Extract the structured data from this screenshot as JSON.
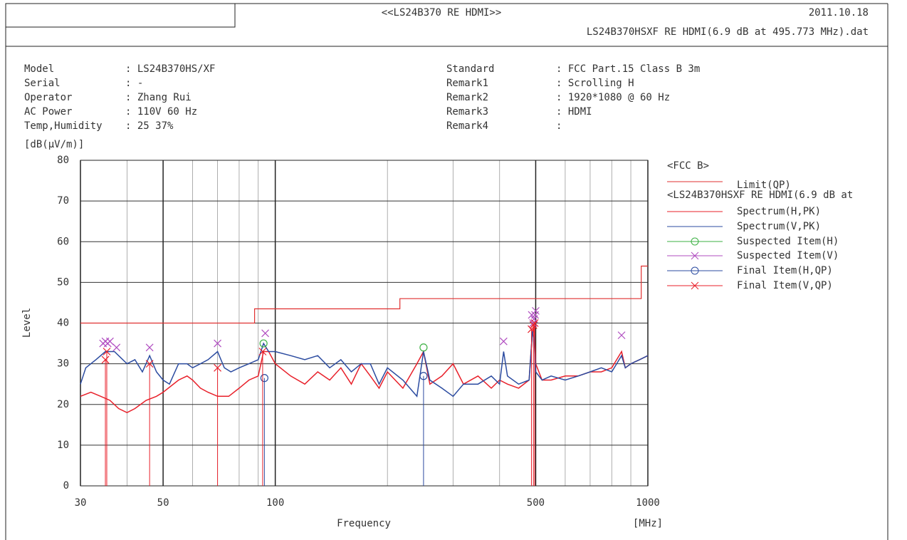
{
  "header": {
    "title": "<<LS24B370 RE HDMI>>",
    "date": "2011.10.18",
    "file": "LS24B370HSXF RE HDMI(6.9 dB at 495.773 MHz).dat"
  },
  "info_left": [
    {
      "label": "Model",
      "value": ": LS24B370HS/XF"
    },
    {
      "label": "Serial",
      "value": ": -"
    },
    {
      "label": "Operator",
      "value": ": Zhang Rui"
    },
    {
      "label": "AC Power",
      "value": ": 110V 60 Hz"
    },
    {
      "label": "Temp,Humidity",
      "value": ": 25 37%"
    }
  ],
  "info_right": [
    {
      "label": "Standard",
      "value": ": FCC Part.15 Class B 3m"
    },
    {
      "label": "Remark1",
      "value": ": Scrolling H"
    },
    {
      "label": "Remark2",
      "value": ": 1920*1080 @ 60 Hz"
    },
    {
      "label": "Remark3",
      "value": ": HDMI"
    },
    {
      "label": "Remark4",
      "value": ":"
    }
  ],
  "chart_data": {
    "type": "line",
    "y_unit": "[dB(μV/m)]",
    "y_label": "Level",
    "x_label": "Frequency",
    "x_unit": "[MHz]",
    "x_log": true,
    "grid": true,
    "xlim": [
      30,
      1000
    ],
    "xticks": [
      30,
      50,
      100,
      500,
      1000
    ],
    "xminor": [
      40,
      60,
      70,
      80,
      90,
      200,
      300,
      400,
      600,
      700,
      800,
      900
    ],
    "ylim": [
      0,
      80
    ],
    "yticks": [
      0,
      10,
      20,
      30,
      40,
      50,
      60,
      70,
      80
    ],
    "legend_group1": "<FCC B>",
    "legend_group2": "<LS24B370HSXF RE HDMI(6.9 dB at",
    "limit": {
      "name": "Limit(QP)",
      "color": "#e03030",
      "x": [
        30,
        88,
        88,
        216,
        216,
        960,
        960,
        1000
      ],
      "values": [
        40,
        40,
        43.5,
        43.5,
        46,
        46,
        54,
        54
      ]
    },
    "series": [
      {
        "name": "Spectrum(H,PK)",
        "style": "line",
        "color": "#e8202a",
        "x": [
          30,
          32,
          34,
          36,
          38,
          40,
          42,
          45,
          48,
          50,
          55,
          58,
          60,
          63,
          66,
          70,
          75,
          80,
          85,
          90,
          93,
          96,
          100,
          110,
          120,
          130,
          140,
          150,
          160,
          170,
          180,
          190,
          200,
          220,
          240,
          250,
          260,
          280,
          300,
          320,
          350,
          380,
          400,
          420,
          450,
          480,
          490,
          495,
          500,
          520,
          550,
          600,
          650,
          700,
          750,
          800,
          850,
          870,
          900,
          950,
          1000
        ],
        "values": [
          22,
          23,
          22,
          21,
          19,
          18,
          19,
          21,
          22,
          23,
          26,
          27,
          26,
          24,
          23,
          22,
          22,
          24,
          26,
          27,
          33,
          33,
          30,
          27,
          25,
          28,
          26,
          29,
          25,
          30,
          27,
          24,
          28,
          24,
          30,
          33,
          25,
          27,
          30,
          25,
          27,
          24,
          26,
          25,
          24,
          26,
          38,
          39,
          30,
          26,
          26,
          27,
          27,
          28,
          28,
          29,
          33,
          29,
          30,
          31,
          32
        ]
      },
      {
        "name": "Spectrum(V,PK)",
        "style": "line",
        "color": "#2b4ba0",
        "x": [
          30,
          31,
          33,
          35,
          37,
          40,
          42,
          44,
          46,
          48,
          50,
          52,
          55,
          58,
          60,
          63,
          66,
          70,
          73,
          76,
          80,
          85,
          90,
          93,
          96,
          100,
          110,
          120,
          130,
          140,
          150,
          160,
          170,
          180,
          190,
          200,
          220,
          240,
          250,
          260,
          280,
          300,
          320,
          350,
          380,
          400,
          410,
          420,
          450,
          480,
          490,
          495,
          500,
          520,
          550,
          600,
          650,
          700,
          750,
          800,
          850,
          870,
          900,
          950,
          1000
        ],
        "values": [
          25,
          29,
          31,
          33,
          33,
          30,
          31,
          28,
          32,
          28,
          26,
          25,
          30,
          30,
          29,
          30,
          31,
          33,
          29,
          28,
          29,
          30,
          31,
          35,
          33,
          33,
          32,
          31,
          32,
          29,
          31,
          28,
          30,
          30,
          25,
          29,
          26,
          22,
          33,
          26,
          24,
          22,
          25,
          25,
          27,
          25,
          33,
          27,
          25,
          26,
          38,
          36,
          28,
          26,
          27,
          26,
          27,
          28,
          29,
          28,
          32,
          29,
          30,
          31,
          32
        ]
      },
      {
        "name": "Suspected Item(H)",
        "style": "circle",
        "color": "#3cb043",
        "x": [
          93,
          250
        ],
        "values": [
          35,
          34
        ]
      },
      {
        "name": "Suspected Item(V)",
        "style": "cross",
        "color": "#b04cc0",
        "x": [
          34.5,
          35,
          35.5,
          36,
          37.5,
          46,
          70,
          94,
          410,
          488,
          492,
          495,
          498,
          500,
          850
        ],
        "values": [
          35,
          35.5,
          35,
          35.5,
          34,
          34,
          35,
          37.5,
          35.5,
          42,
          40,
          41,
          42,
          43,
          37
        ]
      },
      {
        "name": "Final Item(H,QP)",
        "style": "circle",
        "color": "#2b4ba0",
        "x": [
          93.5,
          250
        ],
        "values": [
          26.5,
          27
        ]
      },
      {
        "name": "Final Item(V,QP)",
        "style": "cross",
        "color": "#e8202a",
        "x": [
          35,
          35.3,
          46,
          70,
          92.5,
          487,
          493,
          497
        ],
        "values": [
          31,
          33,
          30,
          29,
          33,
          38.5,
          39.5,
          40
        ]
      }
    ]
  }
}
